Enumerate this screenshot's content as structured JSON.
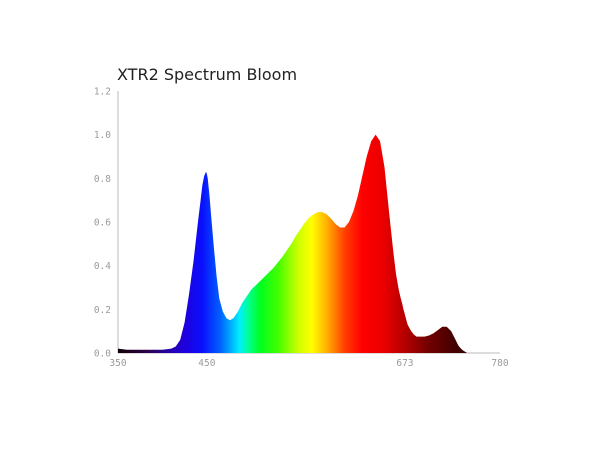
{
  "chart_data": {
    "type": "area",
    "title": "XTR2 Spectrum Bloom",
    "xlabel": "",
    "ylabel": "",
    "xlim": [
      350,
      780
    ],
    "ylim": [
      0,
      1.2
    ],
    "grid": false,
    "x_ticks": [
      350,
      450,
      673,
      780
    ],
    "x_tick_labels": [
      "350",
      "450",
      "673",
      "780"
    ],
    "y_ticks": [
      0.0,
      0.2,
      0.4,
      0.6,
      0.8,
      1.0,
      1.2
    ],
    "y_tick_labels": [
      "0.0",
      "0.2",
      "0.4",
      "0.6",
      "0.8",
      "1.0",
      "1.2"
    ],
    "series": [
      {
        "x": [
          350,
          360,
          370,
          380,
          390,
          400,
          410,
          415,
          420,
          425,
          430,
          435,
          440,
          443,
          445,
          447,
          449,
          450,
          451,
          453,
          455,
          458,
          461,
          464,
          468,
          472,
          476,
          480,
          485,
          490,
          495,
          500,
          505,
          510,
          515,
          520,
          525,
          530,
          535,
          540,
          545,
          550,
          555,
          560,
          565,
          570,
          575,
          580,
          585,
          590,
          595,
          600,
          605,
          610,
          615,
          620,
          625,
          630,
          635,
          640,
          645,
          650,
          655,
          660,
          663,
          666,
          668,
          670,
          671,
          672,
          673,
          674,
          675,
          676,
          678,
          680,
          683,
          686,
          690,
          695,
          700,
          705,
          710,
          715,
          720,
          725,
          730,
          733,
          736,
          739,
          741,
          743,
          745,
          748,
          752,
          756,
          760,
          765,
          770,
          775,
          780
        ],
        "values": [
          0.02,
          0.015,
          0.015,
          0.015,
          0.015,
          0.015,
          0.02,
          0.03,
          0.06,
          0.14,
          0.27,
          0.42,
          0.6,
          0.7,
          0.77,
          0.81,
          0.83,
          0.82,
          0.8,
          0.72,
          0.62,
          0.48,
          0.35,
          0.25,
          0.19,
          0.16,
          0.15,
          0.16,
          0.19,
          0.23,
          0.26,
          0.29,
          0.31,
          0.33,
          0.35,
          0.37,
          0.39,
          0.415,
          0.44,
          0.47,
          0.5,
          0.535,
          0.565,
          0.595,
          0.62,
          0.635,
          0.645,
          0.645,
          0.635,
          0.615,
          0.59,
          0.575,
          0.575,
          0.6,
          0.65,
          0.72,
          0.81,
          0.9,
          0.97,
          1.0,
          0.97,
          0.85,
          0.65,
          0.46,
          0.36,
          0.29,
          0.255,
          0.225,
          0.205,
          0.19,
          0.175,
          0.16,
          0.145,
          0.13,
          0.115,
          0.1,
          0.085,
          0.075,
          0.075,
          0.075,
          0.08,
          0.09,
          0.105,
          0.12,
          0.12,
          0.1,
          0.06,
          0.035,
          0.02,
          0.01,
          0.005,
          0.0,
          0.0,
          0.0,
          0.0,
          0.0,
          0.0,
          0.0,
          0.0,
          0.0,
          0.0
        ]
      }
    ],
    "colors": {
      "title": "#222222",
      "axis": "#bbbbbb",
      "tick_label": "#9a9a9a"
    }
  }
}
